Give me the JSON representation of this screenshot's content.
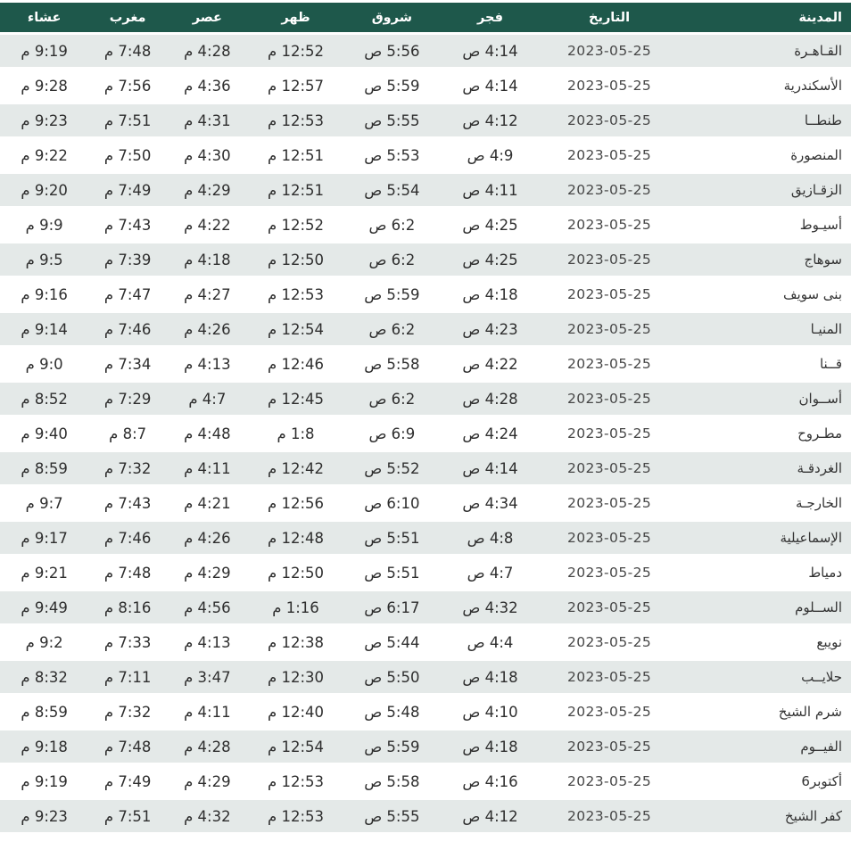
{
  "colors": {
    "header_bg": "#1e584b",
    "row_alt_bg": "#e4e9e8",
    "row_bg": "#ffffff",
    "header_text": "#ffffff",
    "cell_text": "#2e2e2e",
    "date_text": "#474747"
  },
  "table": {
    "date_shown": "2023-05-25",
    "columns": [
      {
        "key": "city",
        "label": "المدينة"
      },
      {
        "key": "date",
        "label": "التاريخ"
      },
      {
        "key": "fajr",
        "label": "فجر"
      },
      {
        "key": "sunrise",
        "label": "شروق"
      },
      {
        "key": "dhuhr",
        "label": "ظهر"
      },
      {
        "key": "asr",
        "label": "عصر"
      },
      {
        "key": "maghrib",
        "label": "مغرب"
      },
      {
        "key": "isha",
        "label": "عشاء"
      }
    ],
    "rows": [
      {
        "city": "القـاهـرة",
        "date": "2023-05-25",
        "fajr": "4:14 ص",
        "sunrise": "5:56 ص",
        "dhuhr": "12:52 م",
        "asr": "4:28 م",
        "maghrib": "7:48 م",
        "isha": "9:19 م"
      },
      {
        "city": "الأسكندرية",
        "date": "2023-05-25",
        "fajr": "4:14 ص",
        "sunrise": "5:59 ص",
        "dhuhr": "12:57 م",
        "asr": "4:36 م",
        "maghrib": "7:56 م",
        "isha": "9:28 م"
      },
      {
        "city": "طنطــا",
        "date": "2023-05-25",
        "fajr": "4:12 ص",
        "sunrise": "5:55 ص",
        "dhuhr": "12:53 م",
        "asr": "4:31 م",
        "maghrib": "7:51 م",
        "isha": "9:23 م"
      },
      {
        "city": "المنصورة",
        "date": "2023-05-25",
        "fajr": "4:9 ص",
        "sunrise": "5:53 ص",
        "dhuhr": "12:51 م",
        "asr": "4:30 م",
        "maghrib": "7:50 م",
        "isha": "9:22 م"
      },
      {
        "city": "الزقـازيق",
        "date": "2023-05-25",
        "fajr": "4:11 ص",
        "sunrise": "5:54 ص",
        "dhuhr": "12:51 م",
        "asr": "4:29 م",
        "maghrib": "7:49 م",
        "isha": "9:20 م"
      },
      {
        "city": "أسيـوط",
        "date": "2023-05-25",
        "fajr": "4:25 ص",
        "sunrise": "6:2 ص",
        "dhuhr": "12:52 م",
        "asr": "4:22 م",
        "maghrib": "7:43 م",
        "isha": "9:9 م"
      },
      {
        "city": "سوهاج",
        "date": "2023-05-25",
        "fajr": "4:25 ص",
        "sunrise": "6:2 ص",
        "dhuhr": "12:50 م",
        "asr": "4:18 م",
        "maghrib": "7:39 م",
        "isha": "9:5 م"
      },
      {
        "city": "بنى سويف",
        "date": "2023-05-25",
        "fajr": "4:18 ص",
        "sunrise": "5:59 ص",
        "dhuhr": "12:53 م",
        "asr": "4:27 م",
        "maghrib": "7:47 م",
        "isha": "9:16 م"
      },
      {
        "city": "المنيـا",
        "date": "2023-05-25",
        "fajr": "4:23 ص",
        "sunrise": "6:2 ص",
        "dhuhr": "12:54 م",
        "asr": "4:26 م",
        "maghrib": "7:46 م",
        "isha": "9:14 م"
      },
      {
        "city": "قــنا",
        "date": "2023-05-25",
        "fajr": "4:22 ص",
        "sunrise": "5:58 ص",
        "dhuhr": "12:46 م",
        "asr": "4:13 م",
        "maghrib": "7:34 م",
        "isha": "9:0 م"
      },
      {
        "city": "أســوان",
        "date": "2023-05-25",
        "fajr": "4:28 ص",
        "sunrise": "6:2 ص",
        "dhuhr": "12:45 م",
        "asr": "4:7 م",
        "maghrib": "7:29 م",
        "isha": "8:52 م"
      },
      {
        "city": "مطـروح",
        "date": "2023-05-25",
        "fajr": "4:24 ص",
        "sunrise": "6:9 ص",
        "dhuhr": "1:8 م",
        "asr": "4:48 م",
        "maghrib": "8:7 م",
        "isha": "9:40 م"
      },
      {
        "city": "الغردقـة",
        "date": "2023-05-25",
        "fajr": "4:14 ص",
        "sunrise": "5:52 ص",
        "dhuhr": "12:42 م",
        "asr": "4:11 م",
        "maghrib": "7:32 م",
        "isha": "8:59 م"
      },
      {
        "city": "الخارجـة",
        "date": "2023-05-25",
        "fajr": "4:34 ص",
        "sunrise": "6:10 ص",
        "dhuhr": "12:56 م",
        "asr": "4:21 م",
        "maghrib": "7:43 م",
        "isha": "9:7 م"
      },
      {
        "city": "الإسماعيلية",
        "date": "2023-05-25",
        "fajr": "4:8 ص",
        "sunrise": "5:51 ص",
        "dhuhr": "12:48 م",
        "asr": "4:26 م",
        "maghrib": "7:46 م",
        "isha": "9:17 م"
      },
      {
        "city": "دمياط",
        "date": "2023-05-25",
        "fajr": "4:7 ص",
        "sunrise": "5:51 ص",
        "dhuhr": "12:50 م",
        "asr": "4:29 م",
        "maghrib": "7:48 م",
        "isha": "9:21 م"
      },
      {
        "city": "الســلوم",
        "date": "2023-05-25",
        "fajr": "4:32 ص",
        "sunrise": "6:17 ص",
        "dhuhr": "1:16 م",
        "asr": "4:56 م",
        "maghrib": "8:16 م",
        "isha": "9:49 م"
      },
      {
        "city": "نويبع",
        "date": "2023-05-25",
        "fajr": "4:4 ص",
        "sunrise": "5:44 ص",
        "dhuhr": "12:38 م",
        "asr": "4:13 م",
        "maghrib": "7:33 م",
        "isha": "9:2 م"
      },
      {
        "city": "حلايــب",
        "date": "2023-05-25",
        "fajr": "4:18 ص",
        "sunrise": "5:50 ص",
        "dhuhr": "12:30 م",
        "asr": "3:47 م",
        "maghrib": "7:11 م",
        "isha": "8:32 م"
      },
      {
        "city": "شرم الشيخ",
        "date": "2023-05-25",
        "fajr": "4:10 ص",
        "sunrise": "5:48 ص",
        "dhuhr": "12:40 م",
        "asr": "4:11 م",
        "maghrib": "7:32 م",
        "isha": "8:59 م"
      },
      {
        "city": "الفيــوم",
        "date": "2023-05-25",
        "fajr": "4:18 ص",
        "sunrise": "5:59 ص",
        "dhuhr": "12:54 م",
        "asr": "4:28 م",
        "maghrib": "7:48 م",
        "isha": "9:18 م"
      },
      {
        "city": "أكتوبر6",
        "date": "2023-05-25",
        "fajr": "4:16 ص",
        "sunrise": "5:58 ص",
        "dhuhr": "12:53 م",
        "asr": "4:29 م",
        "maghrib": "7:49 م",
        "isha": "9:19 م"
      },
      {
        "city": "كفر الشيخ",
        "date": "2023-05-25",
        "fajr": "4:12 ص",
        "sunrise": "5:55 ص",
        "dhuhr": "12:53 م",
        "asr": "4:32 م",
        "maghrib": "7:51 م",
        "isha": "9:23 م"
      }
    ]
  }
}
